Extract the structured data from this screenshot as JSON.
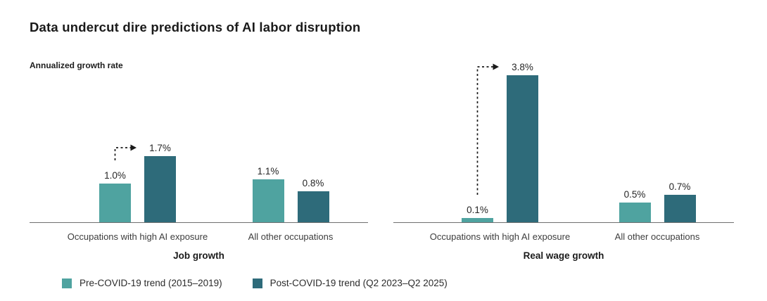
{
  "title": "Data undercut dire predictions of AI labor disruption",
  "y_axis_label": "Annualized growth rate",
  "colors": {
    "pre": "#4FA3A0",
    "post": "#2E6B7A",
    "axis": "#707070",
    "arrow": "#1a1a1a",
    "title_text": "#1a1a1a"
  },
  "legend": {
    "position": "bottom-left",
    "items": [
      {
        "label": "Pre-COVID-19 trend (2015–2019)",
        "color": "#4FA3A0"
      },
      {
        "label": "Post-COVID-19 trend (Q2 2023–Q2 2025)",
        "color": "#2E6B7A"
      }
    ]
  },
  "chart_data": {
    "type": "bar",
    "title": "Data undercut dire predictions of AI labor disruption",
    "ylabel": "Annualized growth rate",
    "unit": "percent annualized growth rate",
    "ylim": [
      0,
      4.2
    ],
    "gridlines": false,
    "y_axis_ticks_visible": false,
    "legend_position": "bottom-left",
    "series_names": [
      "Pre-COVID-19 trend (2015–2019)",
      "Post-COVID-19 trend (Q2 2023–Q2 2025)"
    ],
    "panels": [
      {
        "title": "Job growth",
        "categories": [
          "Occupations with high AI exposure",
          "All other occupations"
        ],
        "series": [
          {
            "name": "Pre-COVID-19 trend (2015–2019)",
            "color": "#4FA3A0",
            "values": [
              1.0,
              1.1
            ]
          },
          {
            "name": "Post-COVID-19 trend (Q2 2023–Q2 2025)",
            "color": "#2E6B7A",
            "values": [
              1.7,
              0.8
            ]
          }
        ],
        "data_labels": {
          "pre": [
            "1.0%",
            "1.1%"
          ],
          "post": [
            "1.7%",
            "0.8%"
          ]
        },
        "annotation": {
          "type": "dashed-arrow",
          "from_series": "pre",
          "to_series": "post",
          "category_index": 0
        }
      },
      {
        "title": "Real wage growth",
        "categories": [
          "Occupations with high AI exposure",
          "All other occupations"
        ],
        "series": [
          {
            "name": "Pre-COVID-19 trend (2015–2019)",
            "color": "#4FA3A0",
            "values": [
              0.1,
              0.5
            ]
          },
          {
            "name": "Post-COVID-19 trend (Q2 2023–Q2 2025)",
            "color": "#2E6B7A",
            "values": [
              3.8,
              0.7
            ]
          }
        ],
        "data_labels": {
          "pre": [
            "0.1%",
            "0.5%"
          ],
          "post": [
            "3.8%",
            "0.7%"
          ]
        },
        "annotation": {
          "type": "dashed-arrow",
          "from_series": "pre",
          "to_series": "post",
          "category_index": 0
        }
      }
    ]
  }
}
